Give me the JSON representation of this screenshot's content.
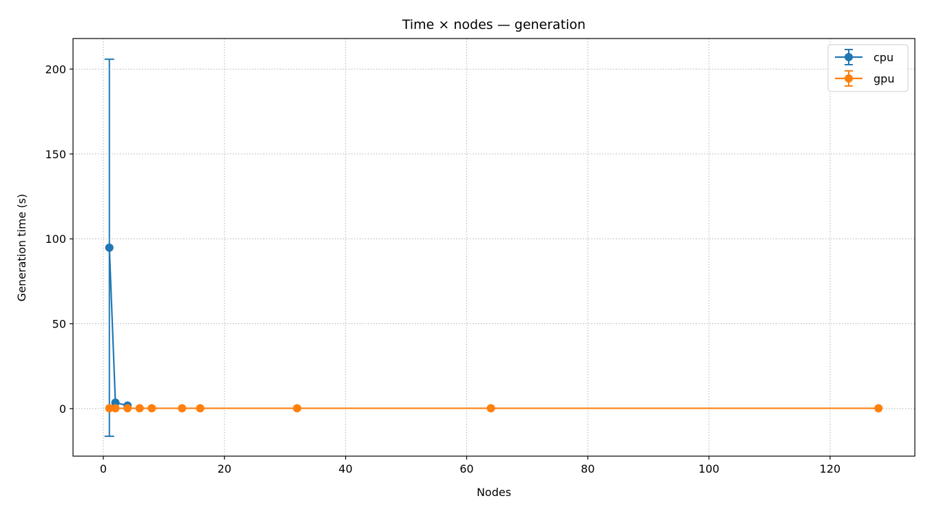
{
  "chart_data": {
    "type": "line",
    "title": "Time × nodes — generation",
    "xlabel": "Nodes",
    "ylabel": "Generation time (s)",
    "xlim": [
      -5,
      134
    ],
    "ylim": [
      -28,
      218
    ],
    "xticks": [
      0,
      20,
      40,
      60,
      80,
      100,
      120
    ],
    "yticks": [
      0,
      50,
      100,
      150,
      200
    ],
    "grid": true,
    "legend_position": "top-right",
    "series": [
      {
        "name": "cpu",
        "color": "#1f77b4",
        "x": [
          1,
          2,
          4
        ],
        "y": [
          94.8,
          3.5,
          1.8
        ],
        "yerr_low": [
          -16.3,
          null,
          null
        ],
        "yerr_high": [
          205.8,
          null,
          null
        ]
      },
      {
        "name": "gpu",
        "color": "#ff7f0e",
        "x": [
          1,
          2,
          4,
          6,
          8,
          13,
          16,
          32,
          64,
          128
        ],
        "y": [
          0.2,
          0.2,
          0.2,
          0.2,
          0.2,
          0.2,
          0.2,
          0.2,
          0.2,
          0.2
        ],
        "yerr_low": [
          null,
          null,
          null,
          null,
          null,
          null,
          null,
          null,
          null,
          null
        ],
        "yerr_high": [
          null,
          null,
          null,
          null,
          null,
          null,
          null,
          null,
          null,
          null
        ]
      }
    ]
  }
}
